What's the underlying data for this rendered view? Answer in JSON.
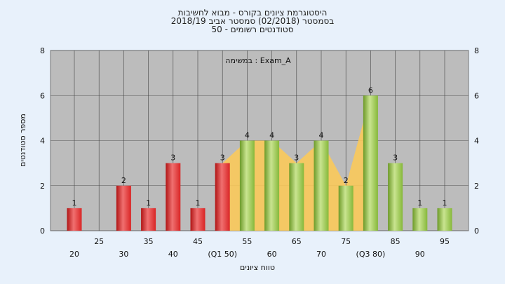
{
  "header": {
    "line1": "היסטוגרמת ציונים בקורס - מבוא לחשיבות",
    "line2": "בסמסטר  (02/2018)  סמסטר אביב 2018/19",
    "line3": "סטודנטים רשומים - 50"
  },
  "chart_data": {
    "type": "bar",
    "annotation": "במשימה : Exam_A",
    "xlabel": "טווח ציונים",
    "ylabel": "מספר סטודנטים",
    "ylim": [
      0,
      8
    ],
    "yticks": [
      0,
      2,
      4,
      6,
      8
    ],
    "grid": true,
    "categories": [
      "20",
      "25",
      "30",
      "35",
      "40",
      "45",
      "50",
      "55",
      "60",
      "65",
      "70",
      "75",
      "80",
      "85",
      "90",
      "95"
    ],
    "tick_labels": [
      "20",
      "25",
      "30",
      "35",
      "40",
      "45",
      "(Q1 50)",
      "55",
      "60",
      "65",
      "70",
      "75",
      "(Q3 80)",
      "85",
      "90",
      "95"
    ],
    "values": [
      1,
      0,
      2,
      1,
      3,
      1,
      3,
      4,
      4,
      3,
      4,
      2,
      6,
      3,
      1,
      1
    ],
    "value_labels": [
      "1",
      "",
      "2",
      "1",
      "3",
      "1",
      "3",
      "4",
      "4",
      "3",
      "4",
      "2",
      "6",
      "3",
      "1",
      "1"
    ],
    "bar_colors": [
      "red",
      "none",
      "red",
      "red",
      "red",
      "red",
      "red",
      "green",
      "green",
      "green",
      "green",
      "green",
      "green",
      "green",
      "green",
      "green"
    ],
    "colors": {
      "red": "#d92525",
      "green": "#86b83a",
      "band": "#f9c95a",
      "plot_bg": "#bcbcbc"
    }
  }
}
